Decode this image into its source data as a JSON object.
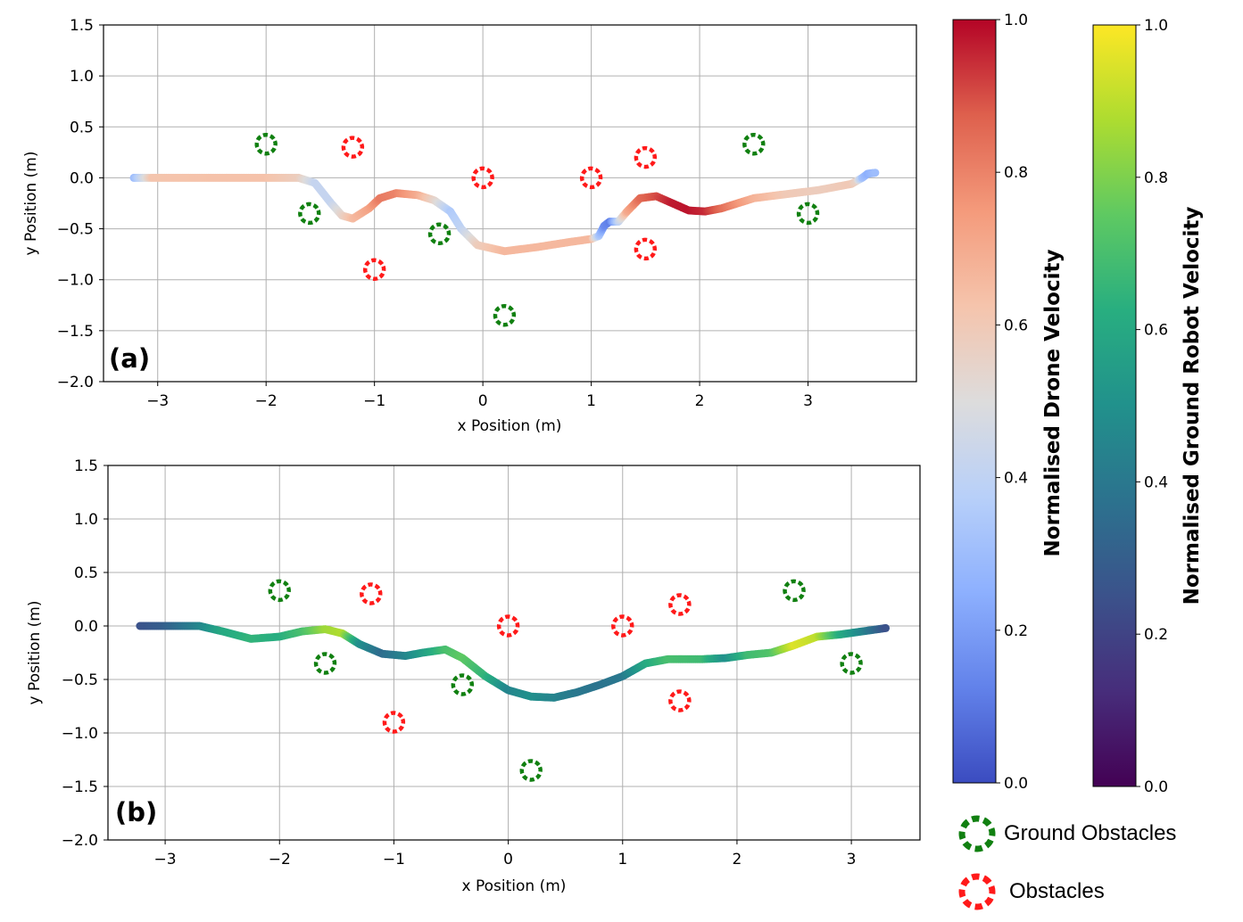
{
  "chart_data": [
    {
      "type": "scatter",
      "panel_label": "(a)",
      "xlabel": "x Position (m)",
      "ylabel": "y Position (m)",
      "xlim": [
        -3.5,
        4.0
      ],
      "ylim": [
        -2.0,
        1.5
      ],
      "xticks": [
        -3,
        -2,
        -1,
        0,
        1,
        2,
        3
      ],
      "xtick_labels": [
        "−3",
        "−2",
        "−1",
        "0",
        "1",
        "2",
        "3"
      ],
      "yticks": [
        1.5,
        1.0,
        0.5,
        0.0,
        -0.5,
        -1.0,
        -1.5,
        -2.0
      ],
      "ytick_labels": [
        "1.5",
        "1.0",
        "0.5",
        "0.0",
        "−0.5",
        "−1.0",
        "−1.5",
        "−2.0"
      ],
      "grid": true,
      "colormap": "coolwarm",
      "trajectory": [
        {
          "x": -3.22,
          "y": 0.0,
          "v": 0.3
        },
        {
          "x": -3.05,
          "y": 0.0,
          "v": 0.62
        },
        {
          "x": -2.5,
          "y": 0.0,
          "v": 0.63
        },
        {
          "x": -2.0,
          "y": 0.0,
          "v": 0.63
        },
        {
          "x": -1.7,
          "y": 0.0,
          "v": 0.58
        },
        {
          "x": -1.55,
          "y": -0.05,
          "v": 0.42
        },
        {
          "x": -1.4,
          "y": -0.25,
          "v": 0.42
        },
        {
          "x": -1.3,
          "y": -0.37,
          "v": 0.55
        },
        {
          "x": -1.2,
          "y": -0.4,
          "v": 0.65
        },
        {
          "x": -1.05,
          "y": -0.3,
          "v": 0.72
        },
        {
          "x": -0.95,
          "y": -0.2,
          "v": 0.82
        },
        {
          "x": -0.8,
          "y": -0.15,
          "v": 0.8
        },
        {
          "x": -0.6,
          "y": -0.17,
          "v": 0.7
        },
        {
          "x": -0.45,
          "y": -0.22,
          "v": 0.55
        },
        {
          "x": -0.3,
          "y": -0.33,
          "v": 0.35
        },
        {
          "x": -0.2,
          "y": -0.5,
          "v": 0.4
        },
        {
          "x": -0.05,
          "y": -0.66,
          "v": 0.58
        },
        {
          "x": 0.2,
          "y": -0.72,
          "v": 0.66
        },
        {
          "x": 0.5,
          "y": -0.68,
          "v": 0.66
        },
        {
          "x": 0.8,
          "y": -0.63,
          "v": 0.66
        },
        {
          "x": 1.0,
          "y": -0.6,
          "v": 0.66
        },
        {
          "x": 1.07,
          "y": -0.57,
          "v": 0.35
        },
        {
          "x": 1.12,
          "y": -0.47,
          "v": 0.15
        },
        {
          "x": 1.17,
          "y": -0.43,
          "v": 0.12
        },
        {
          "x": 1.25,
          "y": -0.43,
          "v": 0.4
        },
        {
          "x": 1.33,
          "y": -0.33,
          "v": 0.7
        },
        {
          "x": 1.45,
          "y": -0.2,
          "v": 0.85
        },
        {
          "x": 1.6,
          "y": -0.18,
          "v": 0.9
        },
        {
          "x": 1.75,
          "y": -0.25,
          "v": 0.97
        },
        {
          "x": 1.9,
          "y": -0.32,
          "v": 0.98
        },
        {
          "x": 2.05,
          "y": -0.33,
          "v": 0.95
        },
        {
          "x": 2.2,
          "y": -0.3,
          "v": 0.85
        },
        {
          "x": 2.5,
          "y": -0.2,
          "v": 0.68
        },
        {
          "x": 2.8,
          "y": -0.16,
          "v": 0.6
        },
        {
          "x": 3.1,
          "y": -0.12,
          "v": 0.58
        },
        {
          "x": 3.4,
          "y": -0.06,
          "v": 0.6
        },
        {
          "x": 3.45,
          "y": -0.03,
          "v": 0.55
        },
        {
          "x": 3.5,
          "y": 0.0,
          "v": 0.32
        },
        {
          "x": 3.55,
          "y": 0.04,
          "v": 0.25
        },
        {
          "x": 3.62,
          "y": 0.05,
          "v": 0.3
        }
      ],
      "ground_obstacles": [
        [
          -2.0,
          0.33
        ],
        [
          -1.6,
          -0.35
        ],
        [
          -0.4,
          -0.55
        ],
        [
          0.2,
          -1.35
        ],
        [
          2.5,
          0.33
        ],
        [
          3.0,
          -0.35
        ]
      ],
      "obstacles": [
        [
          -1.2,
          0.3
        ],
        [
          -1.0,
          -0.9
        ],
        [
          0.0,
          0.0
        ],
        [
          1.0,
          0.0
        ],
        [
          1.5,
          0.2
        ],
        [
          1.5,
          -0.7
        ]
      ]
    },
    {
      "type": "scatter",
      "panel_label": "(b)",
      "xlabel": "x Position (m)",
      "ylabel": "y Position (m)",
      "xlim": [
        -3.5,
        3.6
      ],
      "ylim": [
        -2.0,
        1.5
      ],
      "xticks": [
        -3,
        -2,
        -1,
        0,
        1,
        2,
        3
      ],
      "xtick_labels": [
        "−3",
        "−2",
        "−1",
        "0",
        "1",
        "2",
        "3"
      ],
      "yticks": [
        1.5,
        1.0,
        0.5,
        0.0,
        -0.5,
        -1.0,
        -1.5,
        -2.0
      ],
      "ytick_labels": [
        "1.5",
        "1.0",
        "0.5",
        "0.0",
        "−0.5",
        "−1.0",
        "−1.5",
        "−2.0"
      ],
      "grid": true,
      "colormap": "viridis",
      "trajectory": [
        {
          "x": -3.22,
          "y": 0.0,
          "v": 0.25
        },
        {
          "x": -3.0,
          "y": 0.0,
          "v": 0.3
        },
        {
          "x": -2.7,
          "y": 0.0,
          "v": 0.45
        },
        {
          "x": -2.5,
          "y": -0.05,
          "v": 0.6
        },
        {
          "x": -2.25,
          "y": -0.12,
          "v": 0.65
        },
        {
          "x": -2.0,
          "y": -0.1,
          "v": 0.62
        },
        {
          "x": -1.8,
          "y": -0.05,
          "v": 0.7
        },
        {
          "x": -1.6,
          "y": -0.03,
          "v": 0.85
        },
        {
          "x": -1.45,
          "y": -0.07,
          "v": 0.88
        },
        {
          "x": -1.3,
          "y": -0.17,
          "v": 0.5
        },
        {
          "x": -1.1,
          "y": -0.26,
          "v": 0.35
        },
        {
          "x": -0.9,
          "y": -0.28,
          "v": 0.45
        },
        {
          "x": -0.75,
          "y": -0.25,
          "v": 0.55
        },
        {
          "x": -0.55,
          "y": -0.22,
          "v": 0.7
        },
        {
          "x": -0.4,
          "y": -0.3,
          "v": 0.75
        },
        {
          "x": -0.2,
          "y": -0.47,
          "v": 0.65
        },
        {
          "x": 0.0,
          "y": -0.6,
          "v": 0.45
        },
        {
          "x": 0.2,
          "y": -0.66,
          "v": 0.5
        },
        {
          "x": 0.4,
          "y": -0.67,
          "v": 0.45
        },
        {
          "x": 0.6,
          "y": -0.62,
          "v": 0.4
        },
        {
          "x": 0.8,
          "y": -0.55,
          "v": 0.38
        },
        {
          "x": 1.0,
          "y": -0.47,
          "v": 0.4
        },
        {
          "x": 1.2,
          "y": -0.35,
          "v": 0.6
        },
        {
          "x": 1.4,
          "y": -0.31,
          "v": 0.7
        },
        {
          "x": 1.7,
          "y": -0.31,
          "v": 0.68
        },
        {
          "x": 1.9,
          "y": -0.3,
          "v": 0.5
        },
        {
          "x": 2.1,
          "y": -0.27,
          "v": 0.68
        },
        {
          "x": 2.3,
          "y": -0.25,
          "v": 0.72
        },
        {
          "x": 2.5,
          "y": -0.18,
          "v": 0.95
        },
        {
          "x": 2.7,
          "y": -0.1,
          "v": 0.9
        },
        {
          "x": 2.9,
          "y": -0.08,
          "v": 0.62
        },
        {
          "x": 3.1,
          "y": -0.05,
          "v": 0.45
        },
        {
          "x": 3.3,
          "y": -0.02,
          "v": 0.25
        }
      ],
      "ground_obstacles": [
        [
          -2.0,
          0.33
        ],
        [
          -1.6,
          -0.35
        ],
        [
          -0.4,
          -0.55
        ],
        [
          0.2,
          -1.35
        ],
        [
          2.5,
          0.33
        ],
        [
          3.0,
          -0.35
        ]
      ],
      "obstacles": [
        [
          -1.2,
          0.3
        ],
        [
          -1.0,
          -0.9
        ],
        [
          0.0,
          0.0
        ],
        [
          1.0,
          0.0
        ],
        [
          1.5,
          0.2
        ],
        [
          1.5,
          -0.7
        ]
      ]
    }
  ],
  "colorbars": [
    {
      "label": "Normalised Drone Velocity",
      "colormap": "coolwarm",
      "ticks": [
        0.0,
        0.2,
        0.4,
        0.6,
        0.8,
        1.0
      ],
      "tick_labels": [
        "0.0",
        "0.2",
        "0.4",
        "0.6",
        "0.8",
        "1.0"
      ]
    },
    {
      "label": "Normalised Ground Robot Velocity",
      "colormap": "viridis",
      "ticks": [
        0.0,
        0.2,
        0.4,
        0.6,
        0.8,
        1.0
      ],
      "tick_labels": [
        "0.0",
        "0.2",
        "0.4",
        "0.6",
        "0.8",
        "1.0"
      ]
    }
  ],
  "legend": {
    "ground_obstacles_label": "Ground Obstacles",
    "obstacles_label": "Obstacles",
    "ground_color": "#118011",
    "obstacle_color": "#ff1a1a"
  },
  "colors": {
    "coolwarm": [
      "#3b4cc0",
      "#6282ea",
      "#8db0fe",
      "#b8d0f9",
      "#dddcdc",
      "#f5c4ac",
      "#f49a7b",
      "#de604d",
      "#b40426"
    ],
    "viridis": [
      "#440154",
      "#472d7b",
      "#3b528b",
      "#2c728e",
      "#21918c",
      "#28ae80",
      "#5ec962",
      "#addc30",
      "#fde725"
    ],
    "grid": "#b0b0b0"
  }
}
